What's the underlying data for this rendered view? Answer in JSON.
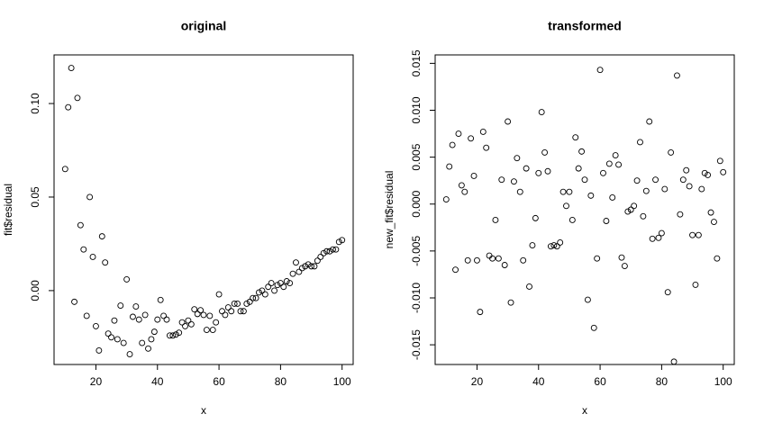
{
  "chart_data": [
    {
      "type": "scatter",
      "title": "original",
      "x_label": "x",
      "y_label": "fit$residual",
      "color": "#000000",
      "x": [
        10,
        11,
        12,
        13,
        14,
        15,
        16,
        17,
        18,
        19,
        20,
        21,
        22,
        23,
        24,
        25,
        26,
        27,
        28,
        29,
        30,
        31,
        32,
        33,
        34,
        35,
        36,
        37,
        38,
        39,
        40,
        41,
        42,
        43,
        44,
        45,
        46,
        47,
        48,
        49,
        50,
        51,
        52,
        53,
        54,
        55,
        56,
        57,
        58,
        59,
        60,
        61,
        62,
        63,
        64,
        65,
        66,
        67,
        68,
        69,
        70,
        71,
        72,
        73,
        74,
        75,
        76,
        77,
        78,
        79,
        80,
        81,
        82,
        83,
        84,
        85,
        86,
        87,
        88,
        89,
        90,
        91,
        92,
        93,
        94,
        95,
        96,
        97,
        98,
        99,
        100
      ],
      "values": [
        0.065,
        0.098,
        0.119,
        -0.006,
        0.103,
        0.035,
        0.022,
        -0.0135,
        0.05,
        0.018,
        -0.019,
        -0.032,
        0.029,
        0.015,
        -0.023,
        -0.025,
        -0.016,
        -0.026,
        -0.008,
        -0.028,
        0.006,
        -0.034,
        -0.014,
        -0.0085,
        -0.0155,
        -0.028,
        -0.013,
        -0.031,
        -0.026,
        -0.022,
        -0.0155,
        -0.005,
        -0.0135,
        -0.0155,
        -0.024,
        -0.024,
        -0.0235,
        -0.0225,
        -0.017,
        -0.019,
        -0.016,
        -0.018,
        -0.01,
        -0.0125,
        -0.0105,
        -0.013,
        -0.021,
        -0.0135,
        -0.021,
        -0.017,
        -0.002,
        -0.011,
        -0.013,
        -0.009,
        -0.011,
        -0.007,
        -0.007,
        -0.011,
        -0.011,
        -0.007,
        -0.006,
        -0.004,
        -0.004,
        -0.001,
        0.0,
        -0.002,
        0.002,
        0.004,
        0.0,
        0.003,
        0.004,
        0.002,
        0.005,
        0.004,
        0.009,
        0.015,
        0.01,
        0.012,
        0.013,
        0.014,
        0.013,
        0.013,
        0.016,
        0.018,
        0.02,
        0.021,
        0.021,
        0.022,
        0.022,
        0.026,
        0.027
      ],
      "xlim": [
        6.4,
        103.6
      ],
      "ylim": [
        -0.0395,
        0.126
      ],
      "xticks": [
        20,
        40,
        60,
        80,
        100
      ],
      "yticks": [
        {
          "value": 0,
          "label": "0.00"
        },
        0.05,
        {
          "value": 0.1,
          "label": "0.10"
        }
      ]
    },
    {
      "type": "scatter",
      "title": "transformed",
      "x_label": "x",
      "y_label": "new_fit$residual",
      "color": "#000000",
      "x": [
        10,
        11,
        12,
        13,
        14,
        15,
        16,
        17,
        18,
        19,
        20,
        21,
        22,
        23,
        24,
        25,
        26,
        27,
        28,
        29,
        30,
        31,
        32,
        33,
        34,
        35,
        36,
        37,
        38,
        39,
        40,
        41,
        42,
        43,
        44,
        45,
        46,
        47,
        48,
        49,
        50,
        51,
        52,
        53,
        54,
        55,
        56,
        57,
        58,
        59,
        60,
        61,
        62,
        63,
        64,
        65,
        66,
        67,
        68,
        69,
        70,
        71,
        72,
        73,
        74,
        75,
        76,
        77,
        78,
        79,
        80,
        81,
        82,
        83,
        84,
        85,
        86,
        87,
        88,
        89,
        90,
        91,
        92,
        93,
        94,
        95,
        96,
        97,
        98,
        99,
        100
      ],
      "values": [
        0.0005,
        0.004,
        0.0063,
        -0.007,
        0.0075,
        0.002,
        0.0013,
        -0.006,
        0.007,
        0.003,
        -0.006,
        -0.0115,
        0.0077,
        0.006,
        -0.0055,
        -0.0058,
        -0.0017,
        -0.0058,
        0.0026,
        -0.0065,
        0.0088,
        -0.0105,
        0.0024,
        0.0049,
        0.0013,
        -0.006,
        0.0038,
        -0.0088,
        -0.0044,
        -0.0015,
        0.0033,
        0.0098,
        0.0055,
        0.0035,
        -0.0045,
        -0.0044,
        -0.0045,
        -0.0041,
        0.0013,
        -0.0002,
        0.0013,
        -0.0017,
        0.0071,
        0.0038,
        0.0056,
        0.0026,
        -0.0102,
        0.0009,
        -0.0132,
        -0.0058,
        0.0143,
        0.0033,
        -0.0018,
        0.0043,
        0.0007,
        0.0052,
        0.0042,
        -0.0057,
        -0.0066,
        -0.0008,
        -0.0006,
        -0.0002,
        0.0025,
        0.0066,
        -0.0013,
        0.0014,
        0.0088,
        -0.0037,
        0.0026,
        -0.0036,
        -0.0031,
        0.0016,
        -0.0094,
        0.0055,
        -0.0168,
        0.0137,
        -0.0011,
        0.0026,
        0.0036,
        0.0019,
        -0.0033,
        -0.0086,
        -0.0033,
        0.0016,
        0.0033,
        0.0031,
        -0.0009,
        -0.0019,
        -0.0058,
        0.0046,
        0.0034
      ],
      "xlim": [
        6.4,
        103.6
      ],
      "ylim": [
        -0.0171,
        0.0159
      ],
      "xticks": [
        20,
        40,
        60,
        80,
        100
      ],
      "yticks": [
        -0.015,
        {
          "value": -0.01,
          "label": "-0.010"
        },
        -0.005,
        {
          "value": 0,
          "label": "0.000"
        },
        0.005,
        {
          "value": 0.01,
          "label": "0.010"
        },
        0.015
      ]
    }
  ]
}
